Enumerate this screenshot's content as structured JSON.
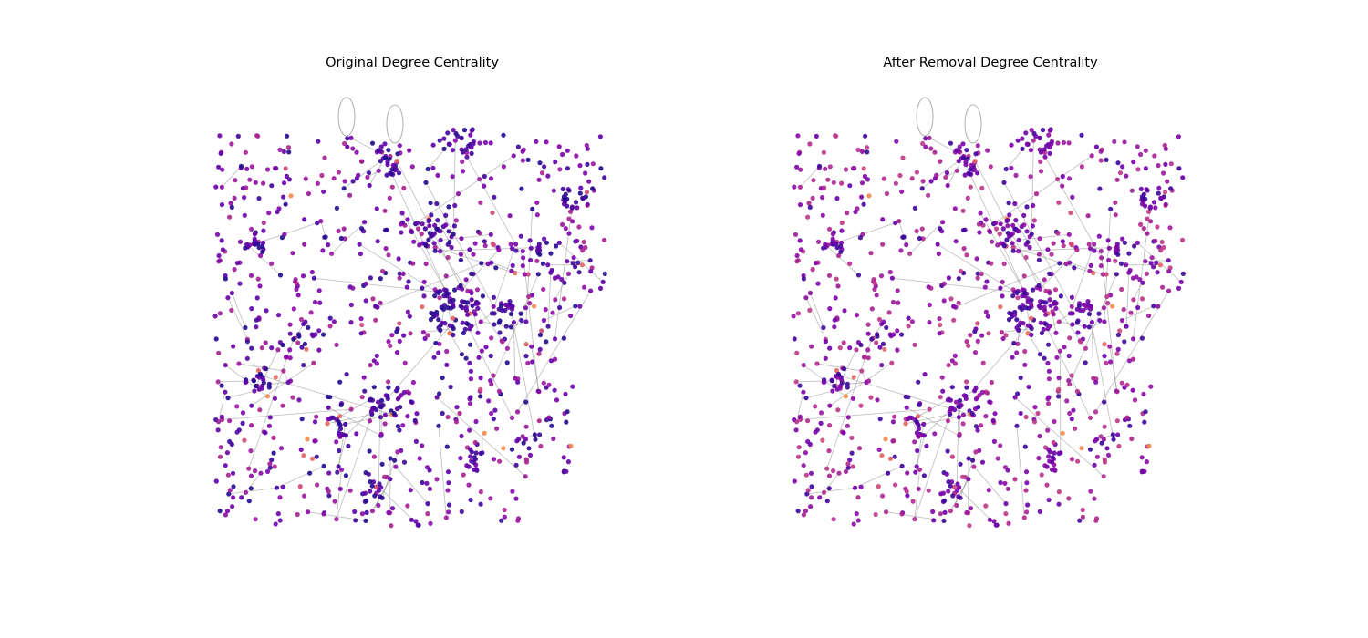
{
  "figure": {
    "panels": [
      {
        "id": "original",
        "title": "Original Degree Centrality",
        "palette": [
          "#24088e",
          "#3d049b",
          "#5c01a6",
          "#6a00a8",
          "#7b02a8",
          "#8b0aa5",
          "#9a179b",
          "#a8228f"
        ]
      },
      {
        "id": "after-removal",
        "title": "After Removal Degree Centrality",
        "palette": [
          "#3d049b",
          "#6a00a8",
          "#7b02a8",
          "#8b0aa5",
          "#9a179b",
          "#a8228f",
          "#b12a90",
          "#bd3786"
        ]
      }
    ],
    "highlight_colors": [
      "#e16462",
      "#f48849",
      "#cc4778"
    ],
    "edge_color": "#9a9a9a",
    "colormap": "plasma"
  }
}
